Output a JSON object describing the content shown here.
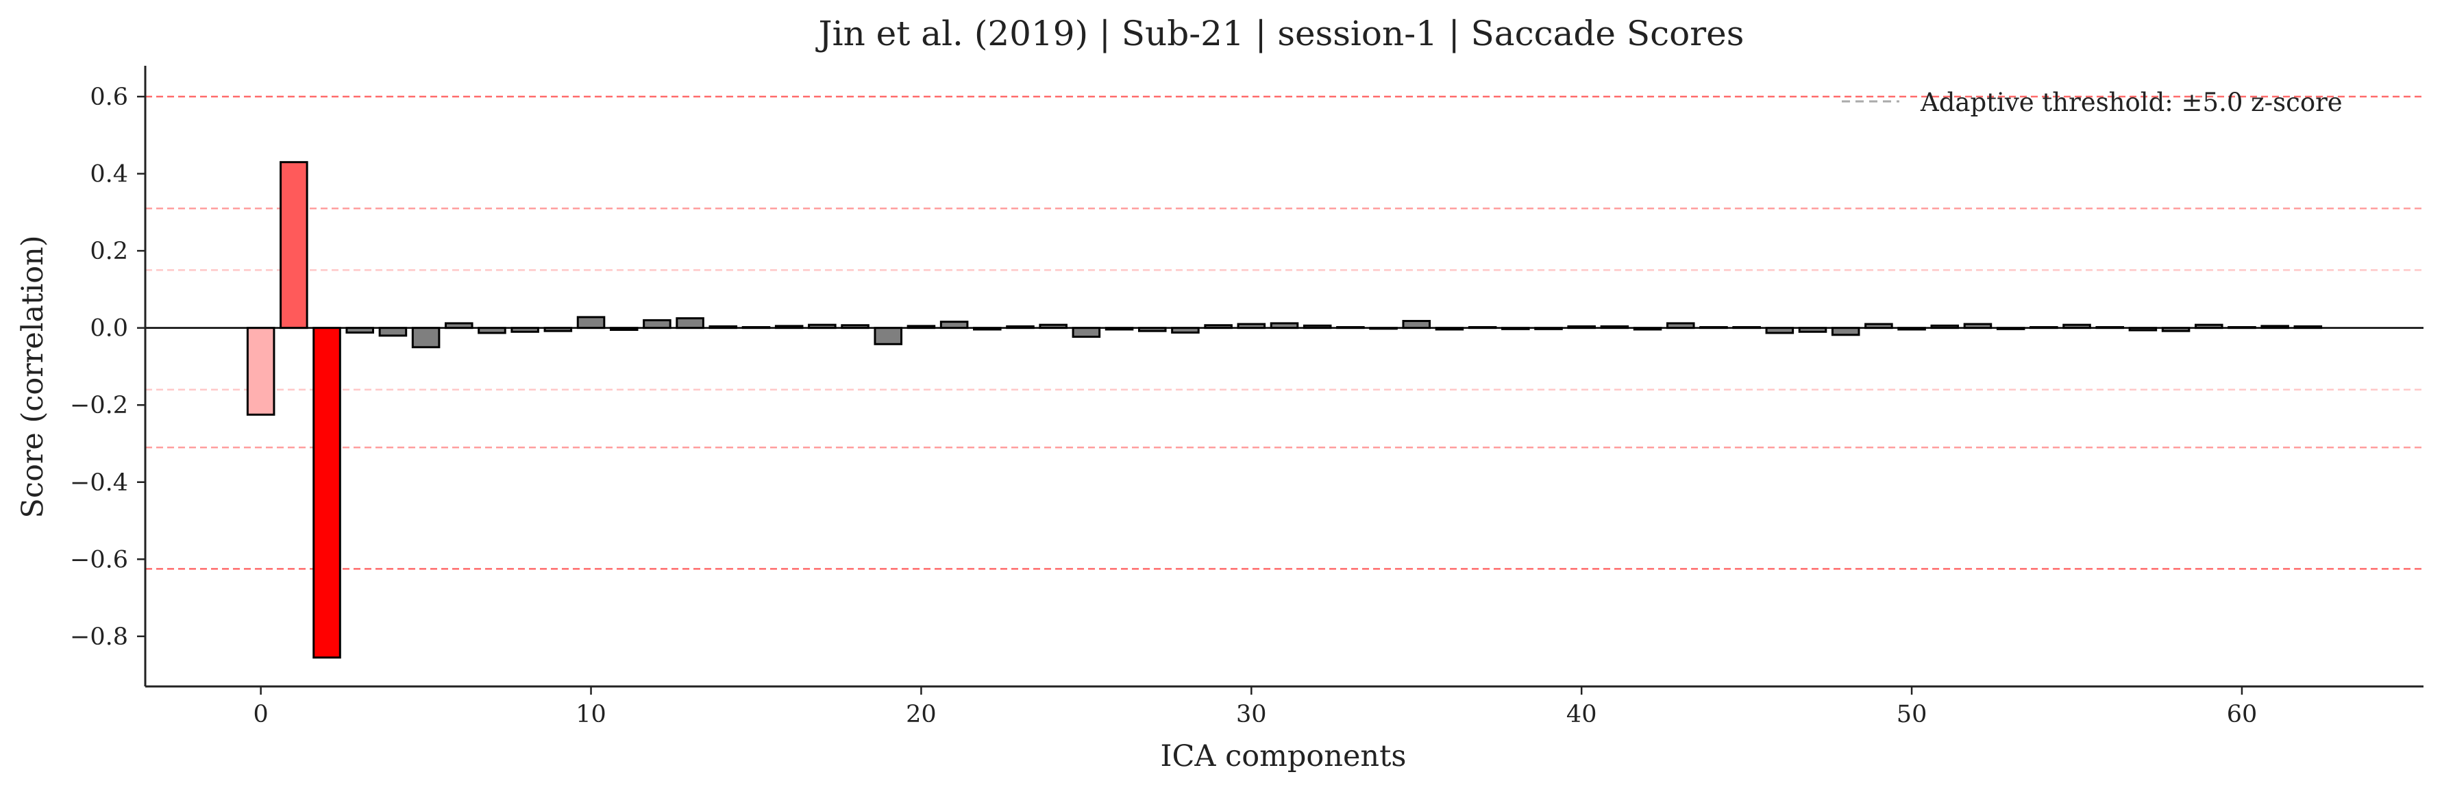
{
  "chart_data": {
    "type": "bar",
    "title": "Jin et al. (2019) | Sub-21 | session-1 | Saccade Scores",
    "xlabel": "ICA components",
    "ylabel": "Score (correlation)",
    "xlim": [
      -3.5,
      65.5
    ],
    "ylim": [
      -0.93,
      0.68
    ],
    "xticks": [
      0,
      10,
      20,
      30,
      40,
      50,
      60
    ],
    "xtick_labels": [
      "0",
      "10",
      "20",
      "30",
      "40",
      "50",
      "60"
    ],
    "yticks": [
      0.6,
      0.4,
      0.2,
      0.0,
      -0.2,
      -0.4,
      -0.6,
      -0.8
    ],
    "ytick_labels": [
      "0.6",
      "0.4",
      "0.2",
      "0.0",
      "−0.2",
      "−0.4",
      "−0.6",
      "−0.8"
    ],
    "x": [
      0,
      1,
      2,
      3,
      4,
      5,
      6,
      7,
      8,
      9,
      10,
      11,
      12,
      13,
      14,
      15,
      16,
      17,
      18,
      19,
      20,
      21,
      22,
      23,
      24,
      25,
      26,
      27,
      28,
      29,
      30,
      31,
      32,
      33,
      34,
      35,
      36,
      37,
      38,
      39,
      40,
      41,
      42,
      43,
      44,
      45,
      46,
      47,
      48,
      49,
      50,
      51,
      52,
      53,
      54,
      55,
      56,
      57,
      58,
      59,
      60,
      61,
      62
    ],
    "values": [
      -0.225,
      0.43,
      -0.855,
      -0.012,
      -0.02,
      -0.05,
      0.012,
      -0.013,
      -0.01,
      -0.008,
      0.028,
      -0.005,
      0.02,
      0.025,
      0.004,
      0.002,
      0.005,
      0.008,
      0.007,
      -0.042,
      0.005,
      0.016,
      -0.004,
      0.004,
      0.008,
      -0.023,
      -0.004,
      -0.008,
      -0.012,
      0.007,
      0.01,
      0.012,
      0.006,
      0.002,
      -0.002,
      0.018,
      -0.004,
      0.002,
      -0.003,
      -0.003,
      0.004,
      0.004,
      -0.004,
      0.012,
      0.002,
      0.002,
      -0.013,
      -0.01,
      -0.018,
      0.01,
      -0.004,
      0.006,
      0.01,
      -0.003,
      0.002,
      0.008,
      0.002,
      -0.006,
      -0.008,
      0.008,
      0.002,
      0.005,
      0.004
    ],
    "bar_colors": [
      "#ffb0b0",
      "#ff5a5a",
      "#ff0000",
      "#7f7f7f",
      "#7f7f7f",
      "#7f7f7f",
      "#7f7f7f",
      "#7f7f7f",
      "#7f7f7f",
      "#7f7f7f",
      "#7f7f7f",
      "#7f7f7f",
      "#7f7f7f",
      "#7f7f7f",
      "#7f7f7f",
      "#7f7f7f",
      "#7f7f7f",
      "#7f7f7f",
      "#7f7f7f",
      "#7f7f7f",
      "#7f7f7f",
      "#7f7f7f",
      "#7f7f7f",
      "#7f7f7f",
      "#7f7f7f",
      "#7f7f7f",
      "#7f7f7f",
      "#7f7f7f",
      "#7f7f7f",
      "#7f7f7f",
      "#7f7f7f",
      "#7f7f7f",
      "#7f7f7f",
      "#7f7f7f",
      "#7f7f7f",
      "#7f7f7f",
      "#7f7f7f",
      "#7f7f7f",
      "#7f7f7f",
      "#7f7f7f",
      "#7f7f7f",
      "#7f7f7f",
      "#7f7f7f",
      "#7f7f7f",
      "#7f7f7f",
      "#7f7f7f",
      "#7f7f7f",
      "#7f7f7f",
      "#7f7f7f",
      "#7f7f7f",
      "#7f7f7f",
      "#7f7f7f",
      "#7f7f7f",
      "#7f7f7f",
      "#7f7f7f",
      "#7f7f7f",
      "#7f7f7f",
      "#7f7f7f",
      "#7f7f7f",
      "#7f7f7f",
      "#7f7f7f",
      "#7f7f7f",
      "#7f7f7f"
    ],
    "bar_edge_color": "#000000",
    "threshold_lines": [
      {
        "value": 0.6,
        "color": "#ff6b6b"
      },
      {
        "value": 0.31,
        "color": "#ff9e9e"
      },
      {
        "value": 0.15,
        "color": "#ffc8c8"
      },
      {
        "value": -0.16,
        "color": "#ffc8c8"
      },
      {
        "value": -0.31,
        "color": "#ff9e9e"
      },
      {
        "value": -0.625,
        "color": "#ff6b6b"
      }
    ],
    "zero_line_color": "#000000",
    "legend": {
      "placement": "top-right",
      "label": "Adaptive threshold: ±5.0 z-score",
      "line_color": "#aaaaaa"
    },
    "grid": false
  }
}
